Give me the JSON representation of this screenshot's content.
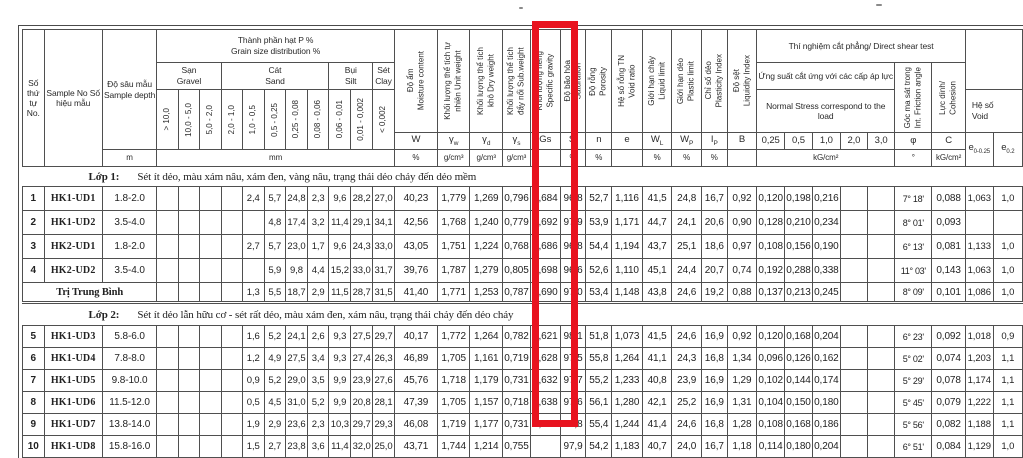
{
  "highlight_color": "#e8131f",
  "header": {
    "no": "Số thứ tự No.",
    "sample": "Sample No Số hiệu mẫu",
    "depth_vi": "Độ sâu mẫu",
    "depth_en": "Sample depth",
    "depth_unit": "m",
    "grain": {
      "title_vi": "Thành phần hạt P %",
      "title_en": "Grain size distribution %",
      "groups": [
        {
          "vi": "Sạn",
          "en": "Gravel"
        },
        {
          "vi": "Cát",
          "en": "Sand"
        },
        {
          "vi": "Bụi",
          "en": "Silt"
        },
        {
          "vi": "Sét",
          "en": "Clay"
        }
      ],
      "sizes": [
        "> 10,0",
        "10,0 - 5,0",
        "5,0 - 2,0",
        "2,0 - 1,0",
        "1,0 - 0,5",
        "0,5 - 0,25",
        "0,25 - 0,08",
        "0,08 - 0,06",
        "0,06 - 0,01",
        "0,01 - 0,002",
        "< 0,002"
      ],
      "unit": "mm"
    },
    "metrics": [
      {
        "vi": "Độ ẩm",
        "en": "Moisture content",
        "sym": "W",
        "sub": "",
        "unit": "%"
      },
      {
        "vi": "Khối lượng thể tích tự",
        "en": "nhiên  Unit weight",
        "sym": "γ",
        "sub": "w",
        "unit": "g/cm³"
      },
      {
        "vi": "Khối lượng thể tích",
        "en": "khô  Dry weight",
        "sym": "γ",
        "sub": "d",
        "unit": "g/cm³"
      },
      {
        "vi": "Khối lượng thể tích",
        "en": "đẩy nổi  Sub.weight",
        "sym": "γ",
        "sub": "s",
        "unit": "g/cm³"
      },
      {
        "vi": "Khối lượng riêng",
        "en": "Specific gravity",
        "sym": "Gs",
        "sub": "",
        "unit": ""
      },
      {
        "vi": "Độ bão hòa",
        "en": "Saturation",
        "sym": "S",
        "sub": "r",
        "unit": "%"
      },
      {
        "vi": "Độ rỗng",
        "en": "Porosity",
        "sym": "n",
        "sub": "",
        "unit": "%"
      },
      {
        "vi": "Hệ số rỗng TN",
        "en": "Void ratio",
        "sym": "e",
        "sub": "",
        "unit": ""
      },
      {
        "vi": "Giới hạn chảy",
        "en": "Liquid limit",
        "sym": "W",
        "sub": "L",
        "unit": "%"
      },
      {
        "vi": "Giới hạn dẻo",
        "en": "Plastic limit",
        "sym": "W",
        "sub": "P",
        "unit": "%"
      },
      {
        "vi": "Chỉ số dẻo",
        "en": "Plasticity Index",
        "sym": "I",
        "sub": "P",
        "unit": "%"
      },
      {
        "vi": "Độ sệt",
        "en": "Liquidity Index",
        "sym": "B",
        "sub": "",
        "unit": ""
      }
    ],
    "shear": {
      "title": "Thí nghiệm cắt phẳng/ Direct shear test",
      "stress_vi": "Ứng suất cắt ứng với các cấp áp lực",
      "stress_en": "Normal Stress correspond to the load",
      "levels": [
        "0,25",
        "0,5",
        "1,0",
        "2,0",
        "3,0"
      ],
      "unit": "kG/cm²",
      "phi_vi": "Góc ma sát trong",
      "phi_en": "Int. Friction angle",
      "phi_sym": "φ",
      "phi_unit": "°",
      "c_vi": "Lực dính/",
      "c_en": "Cohesion",
      "c_sym": "C",
      "c_unit": "kG/cm²"
    },
    "void_group": {
      "vi": "Hệ số",
      "en": "Void",
      "e1_sym": "e",
      "e1_sub": "0-0.25",
      "e2_sym": "e",
      "e2_sub": "0.2"
    }
  },
  "body": [
    {
      "type": "layer",
      "label": "Lớp 1:",
      "desc": "Sét ít dẻo, màu xám nâu, xám đen, vàng nâu, trạng thái dẻo chảy đến dẻo mềm"
    },
    {
      "type": "row",
      "no": "1",
      "id": "HK1-UD1",
      "depth": "1.8-2.0",
      "grain": [
        "",
        "",
        "",
        "",
        "2,4",
        "5,7",
        "24,8",
        "2,3",
        "9,6",
        "28,2",
        "27,0"
      ],
      "metrics": [
        "40,23",
        "1,779",
        "1,269",
        "0,796",
        "2,684",
        "96,8",
        "52,7",
        "1,116",
        "41,5",
        "24,8",
        "16,7",
        "0,92"
      ],
      "shear": [
        "0,120",
        "0,198",
        "0,216",
        "",
        ""
      ],
      "phi": "7° 18'",
      "c": "0,088",
      "e1": "1,063",
      "e2": "1,0"
    },
    {
      "type": "row",
      "no": "2",
      "id": "HK1-UD2",
      "depth": "3.5-4.0",
      "grain": [
        "",
        "",
        "",
        "",
        "",
        "4,8",
        "17,4",
        "3,2",
        "11,4",
        "29,1",
        "34,1"
      ],
      "metrics": [
        "42,56",
        "1,768",
        "1,240",
        "0,779",
        "2,692",
        "97,9",
        "53,9",
        "1,171",
        "44,7",
        "24,1",
        "20,6",
        "0,90"
      ],
      "shear": [
        "0,128",
        "0,210",
        "0,234",
        "",
        ""
      ],
      "phi": "8° 01'",
      "c": "0,093",
      "e1": "",
      "e2": ""
    },
    {
      "type": "row",
      "no": "3",
      "id": "HK2-UD1",
      "depth": "1.8-2.0",
      "grain": [
        "",
        "",
        "",
        "",
        "2,7",
        "5,7",
        "23,0",
        "1,7",
        "9,6",
        "24,3",
        "33,0"
      ],
      "metrics": [
        "43,05",
        "1,751",
        "1,224",
        "0,768",
        "2,686",
        "96,8",
        "54,4",
        "1,194",
        "43,7",
        "25,1",
        "18,6",
        "0,97"
      ],
      "shear": [
        "0,108",
        "0,156",
        "0,190",
        "",
        ""
      ],
      "phi": "6° 13'",
      "c": "0,081",
      "e1": "1,133",
      "e2": "1,0"
    },
    {
      "type": "row",
      "no": "4",
      "id": "HK2-UD2",
      "depth": "3.5-4.0",
      "grain": [
        "",
        "",
        "",
        "",
        "",
        "5,9",
        "9,8",
        "4,4",
        "15,2",
        "33,0",
        "31,7"
      ],
      "metrics": [
        "39,76",
        "1,787",
        "1,279",
        "0,805",
        "2,698",
        "96,6",
        "52,6",
        "1,110",
        "45,1",
        "24,4",
        "20,7",
        "0,74"
      ],
      "shear": [
        "0,192",
        "0,288",
        "0,338",
        "",
        ""
      ],
      "phi": "11° 03'",
      "c": "0,143",
      "e1": "1,063",
      "e2": "1,0"
    },
    {
      "type": "avg",
      "label": "Trị Trung Bình",
      "grain": [
        "",
        "",
        "",
        "",
        "1,3",
        "5,5",
        "18,7",
        "2,9",
        "11,5",
        "28,7",
        "31,5"
      ],
      "metrics": [
        "41,40",
        "1,771",
        "1,253",
        "0,787",
        "2,690",
        "97,0",
        "53,4",
        "1,148",
        "43,8",
        "24,6",
        "19,2",
        "0,88"
      ],
      "shear": [
        "0,137",
        "0,213",
        "0,245",
        "",
        ""
      ],
      "phi": "8° 09'",
      "c": "0,101",
      "e1": "1,086",
      "e2": "1,0"
    },
    {
      "type": "layer",
      "label": "Lớp 2:",
      "desc": "Sét ít dẻo lẫn hữu cơ - sét rất dẻo, màu xám đen, xám nâu, trạng thái chảy đến dẻo chảy"
    },
    {
      "type": "row",
      "no": "5",
      "id": "HK1-UD3",
      "depth": "5.8-6.0",
      "grain": [
        "",
        "",
        "",
        "",
        "1,6",
        "5,2",
        "24,1",
        "2,6",
        "9,3",
        "27,5",
        "29,7"
      ],
      "metrics": [
        "40,17",
        "1,772",
        "1,264",
        "0,782",
        "2,621",
        "98,1",
        "51,8",
        "1,073",
        "41,5",
        "24,6",
        "16,9",
        "0,92"
      ],
      "shear": [
        "0,120",
        "0,168",
        "0,204",
        "",
        ""
      ],
      "phi": "6° 23'",
      "c": "0,092",
      "e1": "1,018",
      "e2": "0,9"
    },
    {
      "type": "row",
      "no": "6",
      "id": "HK1-UD4",
      "depth": "7.8-8.0",
      "grain": [
        "",
        "",
        "",
        "",
        "1,2",
        "4,9",
        "27,5",
        "3,4",
        "9,3",
        "27,4",
        "26,3"
      ],
      "metrics": [
        "46,89",
        "1,705",
        "1,161",
        "0,719",
        "2,628",
        "97,5",
        "55,8",
        "1,264",
        "41,1",
        "24,3",
        "16,8",
        "1,34"
      ],
      "shear": [
        "0,096",
        "0,126",
        "0,162",
        "",
        ""
      ],
      "phi": "5° 02'",
      "c": "0,074",
      "e1": "1,203",
      "e2": "1,1"
    },
    {
      "type": "row",
      "no": "7",
      "id": "HK1-UD5",
      "depth": "9.8-10.0",
      "grain": [
        "",
        "",
        "",
        "",
        "0,9",
        "5,2",
        "29,0",
        "3,5",
        "9,9",
        "23,9",
        "27,6"
      ],
      "metrics": [
        "45,76",
        "1,718",
        "1,179",
        "0,731",
        "2,632",
        "97,7",
        "55,2",
        "1,233",
        "40,8",
        "23,9",
        "16,9",
        "1,29"
      ],
      "shear": [
        "0,102",
        "0,144",
        "0,174",
        "",
        ""
      ],
      "phi": "5° 29'",
      "c": "0,078",
      "e1": "1,174",
      "e2": "1,1"
    },
    {
      "type": "row",
      "no": "8",
      "id": "HK1-UD6",
      "depth": "11.5-12.0",
      "grain": [
        "",
        "",
        "",
        "",
        "0,5",
        "4,5",
        "31,0",
        "5,2",
        "9,9",
        "20,8",
        "28,1"
      ],
      "metrics": [
        "47,39",
        "1,705",
        "1,157",
        "0,718",
        "2,638",
        "97,6",
        "56,1",
        "1,280",
        "42,1",
        "25,2",
        "16,9",
        "1,31"
      ],
      "shear": [
        "0,104",
        "0,150",
        "0,180",
        "",
        ""
      ],
      "phi": "5° 45'",
      "c": "0,079",
      "e1": "1,222",
      "e2": "1,1"
    },
    {
      "type": "row",
      "no": "9",
      "id": "HK1-UD7",
      "depth": "13.8-14.0",
      "grain": [
        "",
        "",
        "",
        "",
        "1,9",
        "2,9",
        "23,6",
        "2,3",
        "10,3",
        "29,7",
        "29,3"
      ],
      "metrics": [
        "46,08",
        "1,719",
        "1,177",
        "0,731",
        "2,641",
        "97,8",
        "55,4",
        "1,244",
        "41,4",
        "24,6",
        "16,8",
        "1,28"
      ],
      "shear": [
        "0,108",
        "0,168",
        "0,186",
        "",
        ""
      ],
      "phi": "5° 56'",
      "c": "0,082",
      "e1": "1,188",
      "e2": "1,1"
    },
    {
      "type": "row",
      "no": "10",
      "id": "HK1-UD8",
      "depth": "15.8-16.0",
      "grain": [
        "",
        "",
        "",
        "",
        "1,5",
        "2,7",
        "23,8",
        "3,6",
        "11,4",
        "32,0",
        "25,0"
      ],
      "metrics": [
        "43,71",
        "1,744",
        "1,214",
        "0,755",
        "",
        "97,9",
        "54,2",
        "1,183",
        "40,7",
        "24,0",
        "16,7",
        "1,18"
      ],
      "shear": [
        "0,114",
        "0,180",
        "0,204",
        "",
        ""
      ],
      "phi": "6° 51'",
      "c": "0,084",
      "e1": "1,129",
      "e2": "1,0"
    }
  ]
}
